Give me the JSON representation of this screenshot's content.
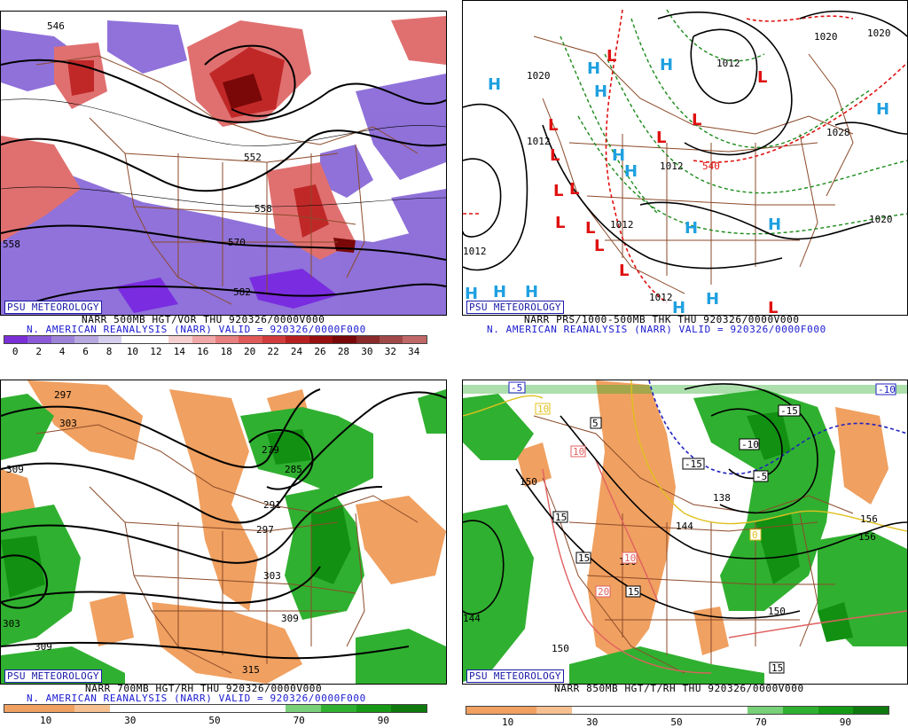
{
  "panels": [
    {
      "id": "tl",
      "brand": "PSU METEOROLOGY",
      "line1": "NARR 500MB HGT/VOR THU 920326/0000V000",
      "line2": "N. AMERICAN REANALYSIS (NARR) VALID = 920326/0000F000",
      "colorbar": [
        "#7b2fd6",
        "#8a5ad8",
        "#9d83d8",
        "#b7a8e0",
        "#d6d0ee",
        "#ffffff",
        "#ffffff",
        "#f6d0d0",
        "#f0a8a8",
        "#e88080",
        "#e05a5a",
        "#d23c3c",
        "#b82020",
        "#981010",
        "#7a0808",
        "#8a2a2a",
        "#a04848",
        "#c06868"
      ],
      "ticks": [
        "0",
        "2",
        "4",
        "6",
        "8",
        "10",
        "12",
        "14",
        "16",
        "18",
        "20",
        "22",
        "24",
        "26",
        "28",
        "30",
        "32",
        "34"
      ],
      "contour_labels": [
        "546",
        "552",
        "558",
        "570",
        "582",
        "558",
        "546",
        "558"
      ]
    },
    {
      "id": "tr",
      "brand": "PSU METEOROLOGY",
      "line1": "NARR PRS/1000-500MB THK THU 920326/0000V000",
      "line2": "N. AMERICAN REANALYSIS (NARR) VALID = 920326/0000F000",
      "highs": [
        "H",
        "H",
        "H",
        "H",
        "H",
        "H",
        "H",
        "H",
        "H",
        "H",
        "H",
        "H",
        "H",
        "H"
      ],
      "lows": [
        "L",
        "L",
        "L",
        "L",
        "L",
        "L",
        "L",
        "L",
        "L",
        "L",
        "L",
        "L",
        "L"
      ],
      "contour_labels": [
        "1020",
        "1020",
        "1020",
        "1012",
        "1012",
        "1012",
        "1028",
        "1012",
        "1020",
        "1012",
        "1012",
        "540"
      ]
    },
    {
      "id": "bl",
      "brand": "PSU METEOROLOGY",
      "line1": "NARR 700MB HGT/RH THU 920326/0000V000",
      "line2": "N. AMERICAN REANALYSIS (NARR) VALID = 920326/0000F000",
      "colorbar": [
        "#f0a060",
        "#f0a060",
        "#f6c090",
        "#ffffff",
        "#ffffff",
        "#ffffff",
        "#ffffff",
        "#ffffff",
        "#78d078",
        "#30b030",
        "#169a16",
        "#0e7a0e"
      ],
      "ticks": [
        "10",
        "30",
        "50",
        "70",
        "90"
      ],
      "contour_labels": [
        "297",
        "303",
        "309",
        "279",
        "285",
        "291",
        "297",
        "303",
        "309",
        "315",
        "303",
        "309"
      ]
    },
    {
      "id": "br",
      "brand": "PSU METEOROLOGY",
      "line1": "NARR 850MB HGT/T/RH THU 920326/0000V000",
      "line2": "",
      "colorbar": [
        "#f0a060",
        "#f0a060",
        "#f6c090",
        "#ffffff",
        "#ffffff",
        "#ffffff",
        "#ffffff",
        "#ffffff",
        "#78d078",
        "#30b030",
        "#169a16",
        "#0e7a0e"
      ],
      "ticks": [
        "10",
        "30",
        "50",
        "70",
        "90"
      ],
      "temp_labels": [
        "-5",
        "-10",
        "-15",
        "-10",
        "-15",
        "-5",
        "5",
        "10",
        "10",
        "15",
        "15",
        "15",
        "10",
        "20",
        "15",
        "0",
        "15",
        "10"
      ],
      "contour_labels": [
        "150",
        "150",
        "138",
        "144",
        "150",
        "156",
        "156",
        "150",
        "144"
      ]
    }
  ],
  "legend_colors": {
    "vor_pos": "#d23c3c",
    "vor_neg": "#8a5ad8",
    "moist": "#30b030",
    "dry": "#f0a060",
    "state_lines": "#8b4a2a",
    "high": "#1fa0e0",
    "low": "#e01010"
  }
}
